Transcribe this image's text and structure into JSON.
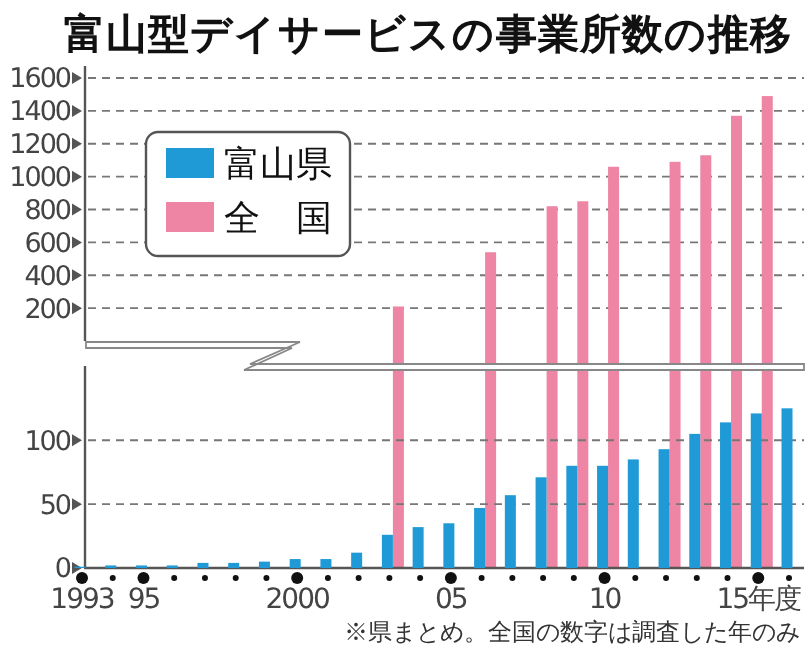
{
  "chart_data": [
    {
      "type": "bar",
      "title": "富山型デイサービスの事業所数の推移",
      "categories": [
        null,
        null,
        null,
        null,
        null,
        null,
        null,
        null,
        null,
        null,
        null,
        null,
        null,
        null,
        null,
        null,
        null,
        null,
        null,
        null,
        null,
        null,
        null,
        null
      ],
      "series": [
        {
          "name": "全　国",
          "color": "#ee85a5",
          "values": [
            null,
            null,
            null,
            null,
            null,
            null,
            null,
            null,
            null,
            null,
            210,
            null,
            null,
            540,
            null,
            820,
            850,
            1060,
            null,
            1090,
            1130,
            1370,
            1490,
            null
          ]
        }
      ],
      "ylim": [
        0,
        1600
      ],
      "yticks": [
        200,
        400,
        600,
        800,
        1000,
        1200,
        1400,
        1600
      ],
      "grid": "y",
      "legend": "left",
      "tick_labels": "y"
    },
    {
      "type": "bar",
      "categories": [
        "1993",
        null,
        "95",
        null,
        null,
        null,
        null,
        "2000",
        null,
        null,
        null,
        null,
        "05",
        null,
        null,
        null,
        null,
        "10",
        null,
        null,
        null,
        null,
        "15年度",
        null
      ],
      "series": [
        {
          "name": "富山県",
          "color": "#1f9ad6",
          "values": [
            1,
            2,
            2,
            2,
            4,
            4,
            5,
            7,
            7,
            12,
            26,
            32,
            35,
            47,
            57,
            71,
            80,
            80,
            85,
            93,
            105,
            114,
            121,
            125
          ]
        }
      ],
      "ylim": [
        0,
        155
      ],
      "yticks": [
        0,
        50,
        100
      ],
      "grid": "y",
      "annotations": [
        "※県まとめ。全国の数字は調査した年のみ"
      ]
    }
  ]
}
